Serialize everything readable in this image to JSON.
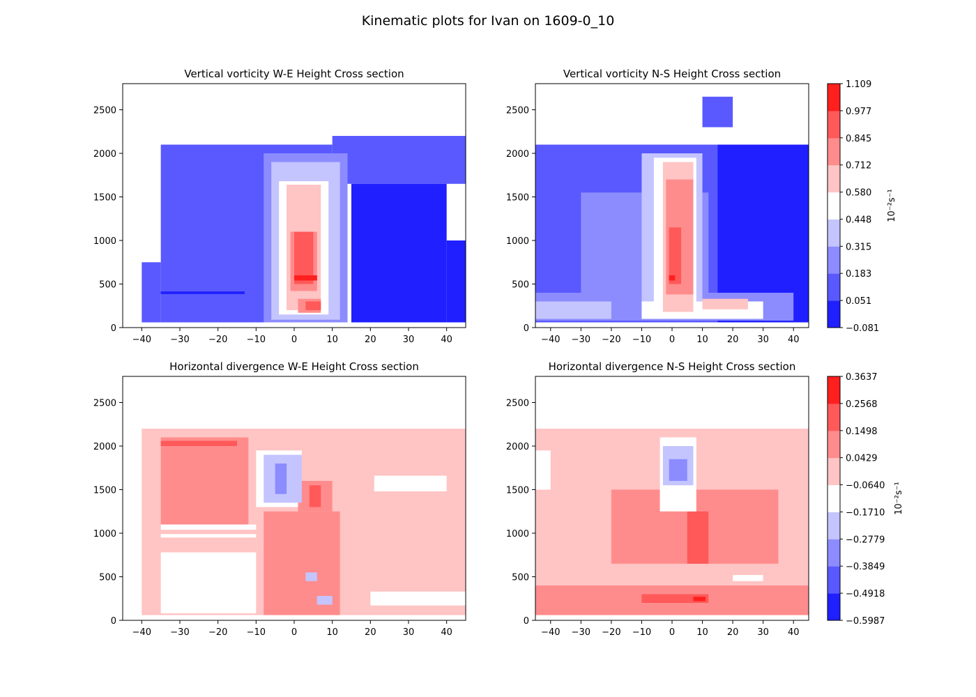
{
  "figure": {
    "title": "Kinematic plots for Ivan on 1609-0_10"
  },
  "colors": {
    "vorticity_levels": [
      "#1f1fff",
      "#5959ff",
      "#8c8cff",
      "#c4c4ff",
      "#ffffff",
      "#ffc4c4",
      "#ff8c8c",
      "#ff5959",
      "#ff1f1f"
    ],
    "divergence_levels": [
      "#1f1fff",
      "#5959ff",
      "#8c8cff",
      "#c4c4ff",
      "#ffffff",
      "#ffc4c4",
      "#ff8c8c",
      "#ff5959",
      "#ff1f1f"
    ]
  },
  "chart_data": [
    {
      "id": "vort_we",
      "type": "contourf",
      "title": "Vertical vorticity W-E Height Cross section",
      "xlim": [
        -45,
        45
      ],
      "ylim": [
        0,
        2800
      ],
      "xticks": [
        -40,
        -30,
        -20,
        -10,
        0,
        10,
        20,
        30,
        40
      ],
      "yticks": [
        0,
        500,
        1000,
        1500,
        2000,
        2500
      ],
      "field": "vorticity",
      "regions": [
        {
          "level": 1,
          "x": [
            -35,
            10
          ],
          "y": [
            60,
            2100
          ]
        },
        {
          "level": 1,
          "x": [
            -40,
            -35
          ],
          "y": [
            60,
            750
          ]
        },
        {
          "level": 1,
          "x": [
            10,
            45
          ],
          "y": [
            1650,
            2200
          ]
        },
        {
          "level": 0,
          "x": [
            15,
            40
          ],
          "y": [
            60,
            1650
          ]
        },
        {
          "level": 0,
          "x": [
            40,
            45
          ],
          "y": [
            60,
            1000
          ]
        },
        {
          "level": 0,
          "x": [
            -35,
            -13
          ],
          "y": [
            385,
            415
          ]
        },
        {
          "level": 2,
          "x": [
            -8,
            14
          ],
          "y": [
            60,
            2000
          ]
        },
        {
          "level": 3,
          "x": [
            -6,
            12
          ],
          "y": [
            90,
            1900
          ]
        },
        {
          "level": 4,
          "x": [
            -4,
            9
          ],
          "y": [
            150,
            1680
          ]
        },
        {
          "level": 5,
          "x": [
            -2,
            7
          ],
          "y": [
            200,
            1640
          ]
        },
        {
          "level": 6,
          "x": [
            -1,
            6
          ],
          "y": [
            420,
            1100
          ]
        },
        {
          "level": 6,
          "x": [
            1,
            7
          ],
          "y": [
            170,
            330
          ]
        },
        {
          "level": 7,
          "x": [
            0,
            5
          ],
          "y": [
            500,
            1100
          ]
        },
        {
          "level": 7,
          "x": [
            3,
            7
          ],
          "y": [
            200,
            300
          ]
        },
        {
          "level": 8,
          "x": [
            0,
            6
          ],
          "y": [
            540,
            600
          ]
        }
      ]
    },
    {
      "id": "vort_ns",
      "type": "contourf",
      "title": "Vertical vorticity N-S Height Cross section",
      "xlim": [
        -45,
        45
      ],
      "ylim": [
        0,
        2800
      ],
      "xticks": [
        -40,
        -30,
        -20,
        -10,
        0,
        10,
        20,
        30,
        40
      ],
      "yticks": [
        0,
        500,
        1000,
        1500,
        2000,
        2500
      ],
      "field": "vorticity",
      "regions": [
        {
          "level": 1,
          "x": [
            -45,
            45
          ],
          "y": [
            60,
            2100
          ]
        },
        {
          "level": 1,
          "x": [
            10,
            20
          ],
          "y": [
            2300,
            2650
          ]
        },
        {
          "level": 0,
          "x": [
            15,
            45
          ],
          "y": [
            60,
            2100
          ]
        },
        {
          "level": 0,
          "x": [
            -45,
            -15
          ],
          "y": [
            350,
            400
          ]
        },
        {
          "level": 2,
          "x": [
            -30,
            12
          ],
          "y": [
            200,
            1550
          ]
        },
        {
          "level": 2,
          "x": [
            -45,
            40
          ],
          "y": [
            80,
            400
          ]
        },
        {
          "level": 3,
          "x": [
            -10,
            10
          ],
          "y": [
            150,
            2000
          ]
        },
        {
          "level": 3,
          "x": [
            -45,
            -20
          ],
          "y": [
            100,
            300
          ]
        },
        {
          "level": 4,
          "x": [
            -6,
            8
          ],
          "y": [
            150,
            1950
          ]
        },
        {
          "level": 4,
          "x": [
            -10,
            30
          ],
          "y": [
            100,
            300
          ]
        },
        {
          "level": 5,
          "x": [
            -3,
            7
          ],
          "y": [
            180,
            1900
          ]
        },
        {
          "level": 5,
          "x": [
            10,
            25
          ],
          "y": [
            210,
            330
          ]
        },
        {
          "level": 6,
          "x": [
            -2,
            7
          ],
          "y": [
            380,
            1700
          ]
        },
        {
          "level": 7,
          "x": [
            -1,
            3
          ],
          "y": [
            500,
            1150
          ]
        },
        {
          "level": 8,
          "x": [
            -1,
            1
          ],
          "y": [
            540,
            600
          ]
        }
      ]
    },
    {
      "id": "div_we",
      "type": "contourf",
      "title": "Horizontal divergence W-E Height Cross section",
      "xlim": [
        -45,
        45
      ],
      "ylim": [
        0,
        2800
      ],
      "xticks": [
        -40,
        -30,
        -20,
        -10,
        0,
        10,
        20,
        30,
        40
      ],
      "yticks": [
        0,
        500,
        1000,
        1500,
        2000,
        2500
      ],
      "field": "divergence",
      "regions": [
        {
          "level": 5,
          "x": [
            -40,
            45
          ],
          "y": [
            60,
            2200
          ]
        },
        {
          "level": 6,
          "x": [
            -35,
            -12
          ],
          "y": [
            1100,
            2100
          ]
        },
        {
          "level": 7,
          "x": [
            -35,
            -15
          ],
          "y": [
            2000,
            2060
          ]
        },
        {
          "level": 4,
          "x": [
            -35,
            -10
          ],
          "y": [
            80,
            780
          ]
        },
        {
          "level": 4,
          "x": [
            -35,
            -10
          ],
          "y": [
            950,
            990
          ]
        },
        {
          "level": 4,
          "x": [
            -35,
            -10
          ],
          "y": [
            1040,
            1100
          ]
        },
        {
          "level": 4,
          "x": [
            -10,
            2
          ],
          "y": [
            1300,
            1950
          ]
        },
        {
          "level": 4,
          "x": [
            20,
            45
          ],
          "y": [
            170,
            330
          ]
        },
        {
          "level": 4,
          "x": [
            21,
            40
          ],
          "y": [
            1480,
            1660
          ]
        },
        {
          "level": 6,
          "x": [
            -8,
            12
          ],
          "y": [
            60,
            1250
          ]
        },
        {
          "level": 6,
          "x": [
            1,
            10
          ],
          "y": [
            1250,
            1600
          ]
        },
        {
          "level": 7,
          "x": [
            4,
            7
          ],
          "y": [
            1300,
            1550
          ]
        },
        {
          "level": 3,
          "x": [
            -8,
            2
          ],
          "y": [
            1350,
            1900
          ]
        },
        {
          "level": 2,
          "x": [
            -5,
            -2
          ],
          "y": [
            1450,
            1800
          ]
        },
        {
          "level": 3,
          "x": [
            3,
            6
          ],
          "y": [
            450,
            550
          ]
        },
        {
          "level": 3,
          "x": [
            6,
            10
          ],
          "y": [
            180,
            280
          ]
        }
      ]
    },
    {
      "id": "div_ns",
      "type": "contourf",
      "title": "Horizontal divergence N-S Height Cross section",
      "xlim": [
        -45,
        45
      ],
      "ylim": [
        0,
        2800
      ],
      "xticks": [
        -40,
        -30,
        -20,
        -10,
        0,
        10,
        20,
        30,
        40
      ],
      "yticks": [
        0,
        500,
        1000,
        1500,
        2000,
        2500
      ],
      "field": "divergence",
      "regions": [
        {
          "level": 5,
          "x": [
            -45,
            45
          ],
          "y": [
            60,
            2200
          ]
        },
        {
          "level": 6,
          "x": [
            -20,
            35
          ],
          "y": [
            650,
            1500
          ]
        },
        {
          "level": 6,
          "x": [
            -45,
            45
          ],
          "y": [
            60,
            400
          ]
        },
        {
          "level": 7,
          "x": [
            5,
            12
          ],
          "y": [
            650,
            1250
          ]
        },
        {
          "level": 7,
          "x": [
            -10,
            12
          ],
          "y": [
            200,
            300
          ]
        },
        {
          "level": 8,
          "x": [
            7,
            11
          ],
          "y": [
            220,
            270
          ]
        },
        {
          "level": 4,
          "x": [
            -4,
            8
          ],
          "y": [
            1250,
            2100
          ]
        },
        {
          "level": 3,
          "x": [
            -3,
            7
          ],
          "y": [
            1550,
            2000
          ]
        },
        {
          "level": 2,
          "x": [
            -1,
            5
          ],
          "y": [
            1600,
            1850
          ]
        },
        {
          "level": 4,
          "x": [
            -45,
            -40
          ],
          "y": [
            1500,
            1950
          ]
        },
        {
          "level": 4,
          "x": [
            20,
            30
          ],
          "y": [
            450,
            520
          ]
        }
      ]
    }
  ],
  "colorbars": [
    {
      "id": "cb_vort",
      "label": "10⁻²s⁻¹",
      "ticks": [
        "1.109",
        "0.977",
        "0.845",
        "0.712",
        "0.580",
        "0.448",
        "0.315",
        "0.183",
        "0.051",
        "−0.081"
      ]
    },
    {
      "id": "cb_div",
      "label": "10⁻²s⁻¹",
      "ticks": [
        "0.3637",
        "0.2568",
        "0.1498",
        "0.0429",
        "−0.0640",
        "−0.1710",
        "−0.2779",
        "−0.3849",
        "−0.4918",
        "−0.5987"
      ]
    }
  ]
}
